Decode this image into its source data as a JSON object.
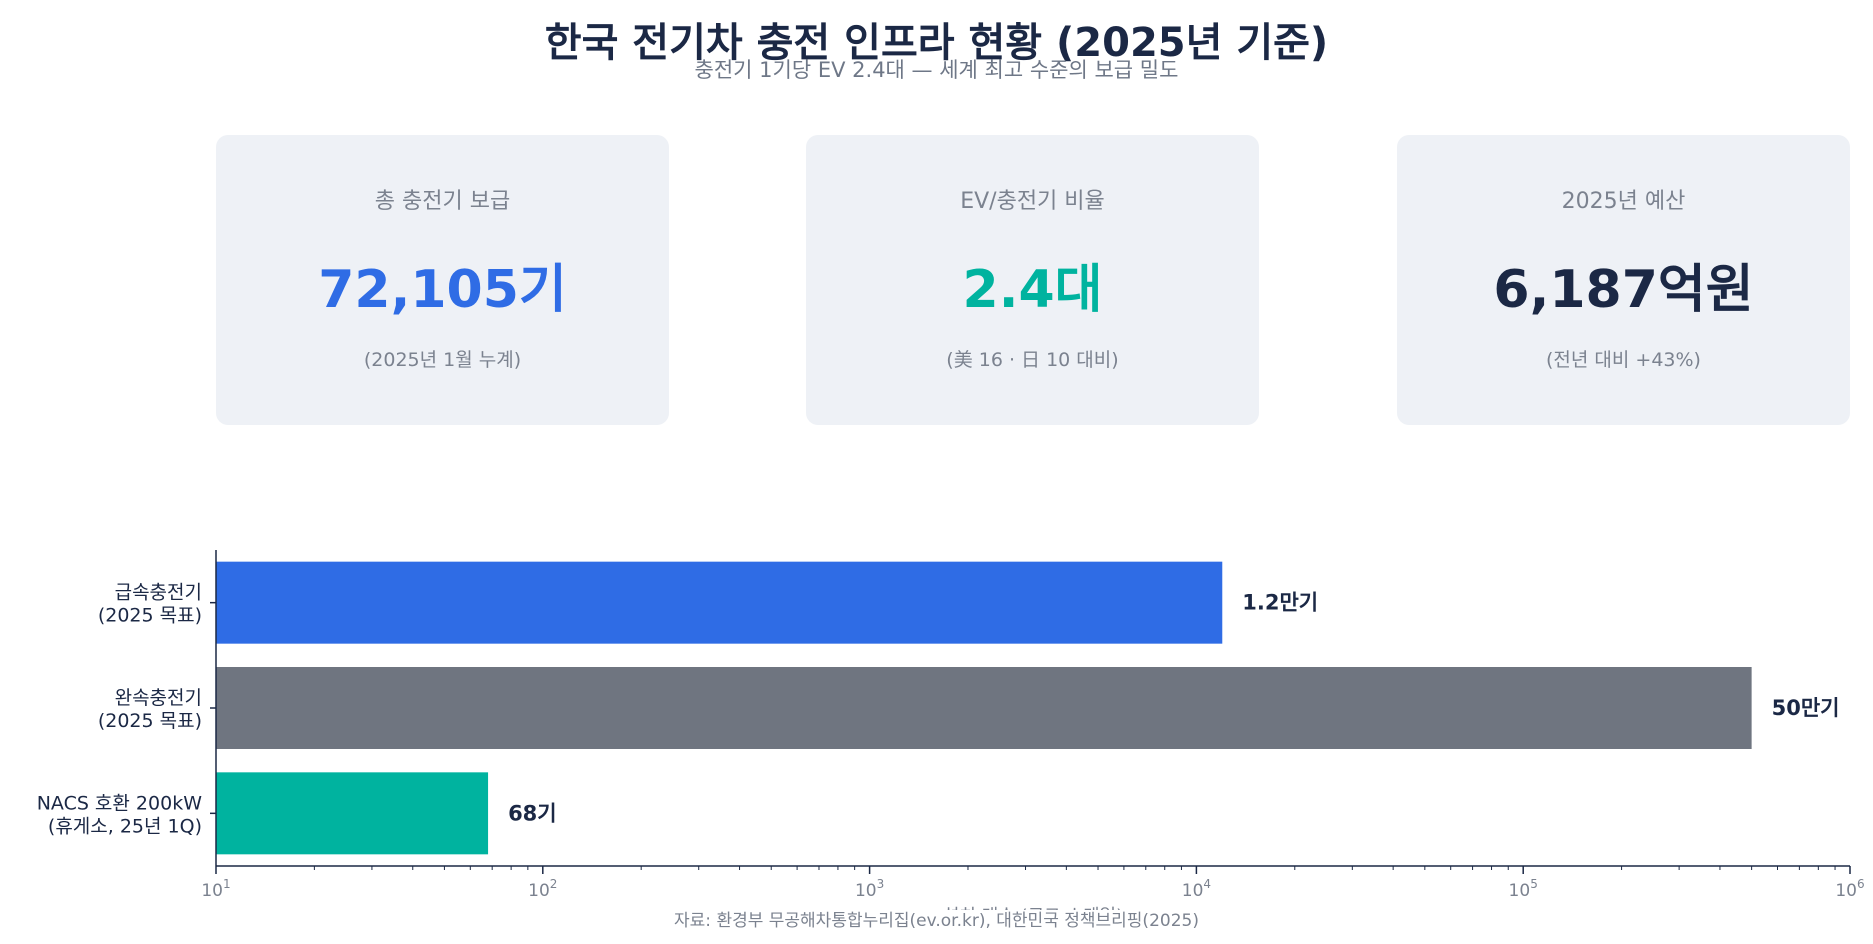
{
  "header": {
    "title": "한국 전기차 충전 인프라 현황 (2025년 기준)",
    "subtitle": "충전기 1기당 EV 2.4대 — 세계 최고 수준의 보급 밀도"
  },
  "cards": [
    {
      "label": "총 충전기 보급",
      "value": "72,105기",
      "note": "(2025년 1월 누계)",
      "color": "#2f6ce5"
    },
    {
      "label": "EV/충전기 비율",
      "value": "2.4대",
      "note": "(美 16 · 日 10 대비)",
      "color": "#00b39f"
    },
    {
      "label": "2025년 예산",
      "value": "6,187억원",
      "note": "(전년 대비 +43%)",
      "color": "#1b2845"
    }
  ],
  "chart_data": {
    "type": "bar",
    "orientation": "horizontal",
    "x_scale": "log",
    "xlim": [
      10,
      1000000
    ],
    "xlabel": "설치 대수 (로그 스케일)",
    "categories": [
      [
        "급속충전기",
        "(2025 목표)"
      ],
      [
        "완속충전기",
        "(2025 목표)"
      ],
      [
        "NACS 호환 200kW",
        "(휴게소, 25년 1Q)"
      ]
    ],
    "values": [
      12000,
      500000,
      68
    ],
    "data_labels": [
      "1.2만기",
      "50만기",
      "68기"
    ],
    "colors": [
      "#2f6ce5",
      "#6f7580",
      "#00b39f"
    ],
    "grid": false,
    "legend": "none"
  },
  "footer": {
    "source": "자료: 환경부 무공해차통합누리집(ev.or.kr), 대한민국 정책브리핑(2025)"
  }
}
